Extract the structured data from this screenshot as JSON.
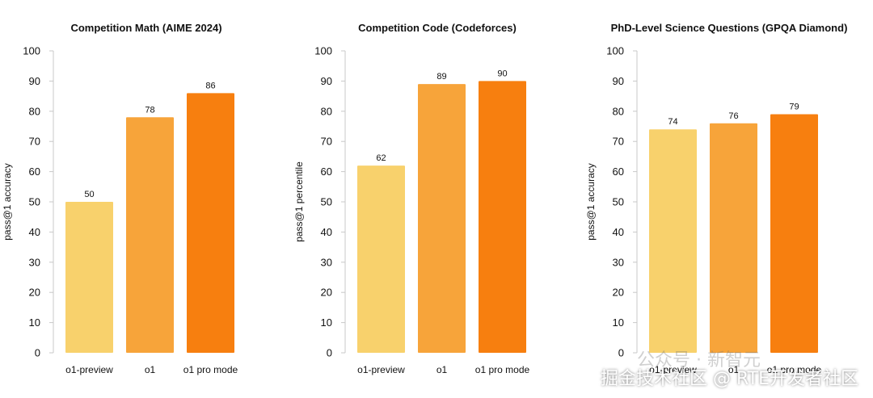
{
  "colors": {
    "preview": "#f8d16c",
    "o1": "#f7a43a",
    "pro": "#f77f0f",
    "grid": "#c8c8c8",
    "text": "#111111"
  },
  "chart_data": [
    {
      "type": "bar",
      "title": "Competition Math (AIME 2024)",
      "ylabel": "pass@1 accuracy",
      "categories": [
        "o1-preview",
        "o1",
        "o1 pro mode"
      ],
      "values": [
        50,
        78,
        86
      ],
      "ylim": [
        0,
        100
      ],
      "yticks": [
        0,
        10,
        20,
        30,
        40,
        50,
        60,
        70,
        80,
        90,
        100
      ],
      "grid": false
    },
    {
      "type": "bar",
      "title": "Competition Code (Codeforces)",
      "ylabel": "pass@1 percentile",
      "categories": [
        "o1-preview",
        "o1",
        "o1 pro mode"
      ],
      "values": [
        62,
        89,
        90
      ],
      "ylim": [
        0,
        100
      ],
      "yticks": [
        0,
        10,
        20,
        30,
        40,
        50,
        60,
        70,
        80,
        90,
        100
      ],
      "grid": false
    },
    {
      "type": "bar",
      "title": "PhD-Level Science Questions (GPQA Diamond)",
      "ylabel": "pass@1 accuracy",
      "categories": [
        "o1-preview",
        "o1",
        "o1 pro mode"
      ],
      "values": [
        74,
        76,
        79
      ],
      "ylim": [
        0,
        100
      ],
      "yticks": [
        0,
        10,
        20,
        30,
        40,
        50,
        60,
        70,
        80,
        90,
        100
      ],
      "grid": false
    }
  ],
  "watermark": "掘金技术社区 @ RTE开发者社区",
  "watermark_faint": "公众号 · 新智元"
}
